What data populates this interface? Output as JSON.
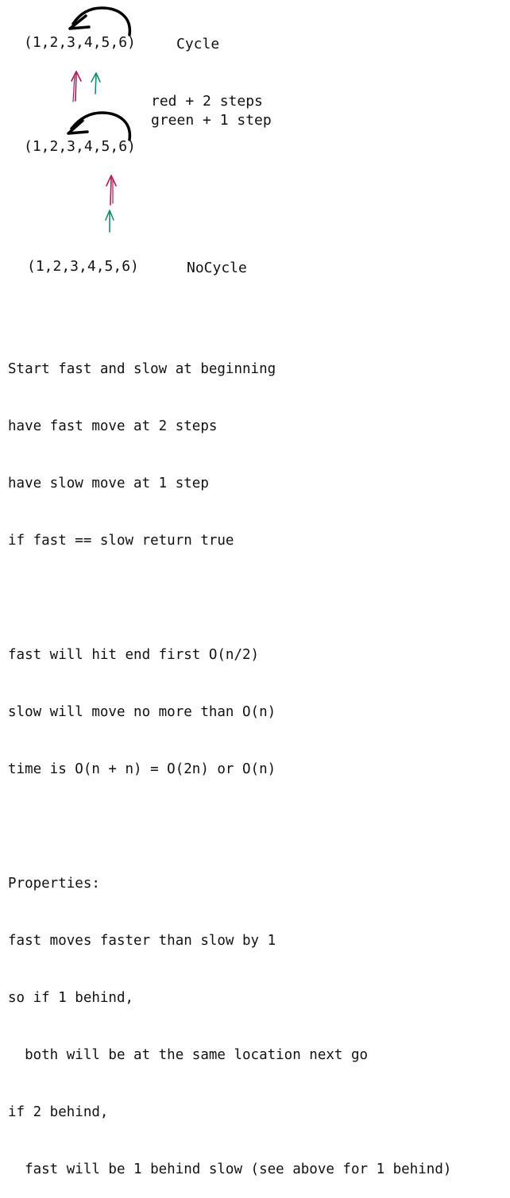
{
  "diagram": {
    "cycle_sequence": "(1,2,3,4,5,6)",
    "cycle_label": "Cycle",
    "step_notes": [
      "red + 2 steps",
      "green + 1 step"
    ],
    "middle_sequence": "(1,2,3,4,5,6)",
    "nocycle_sequence": "(1,2,3,4,5,6)",
    "nocycle_label": "NoCycle",
    "colors": {
      "red_pointer": "#b0185a",
      "green_pointer": "#1a8a6a",
      "loop_arrow": "#000000"
    }
  },
  "notes": {
    "lines": [
      "Start fast and slow at beginning",
      "have fast move at 2 steps",
      "have slow move at 1 step",
      "if fast == slow return true",
      "",
      "fast will hit end first O(n/2)",
      "slow will move no more than O(n)",
      "time is O(n + n) = O(2n) or O(n)",
      "",
      "Properties:",
      "fast moves faster than slow by 1",
      "so if 1 behind,",
      "  both will be at the same location next go",
      "if 2 behind,",
      "  fast will be 1 behind slow (see above for 1 behind)"
    ]
  }
}
